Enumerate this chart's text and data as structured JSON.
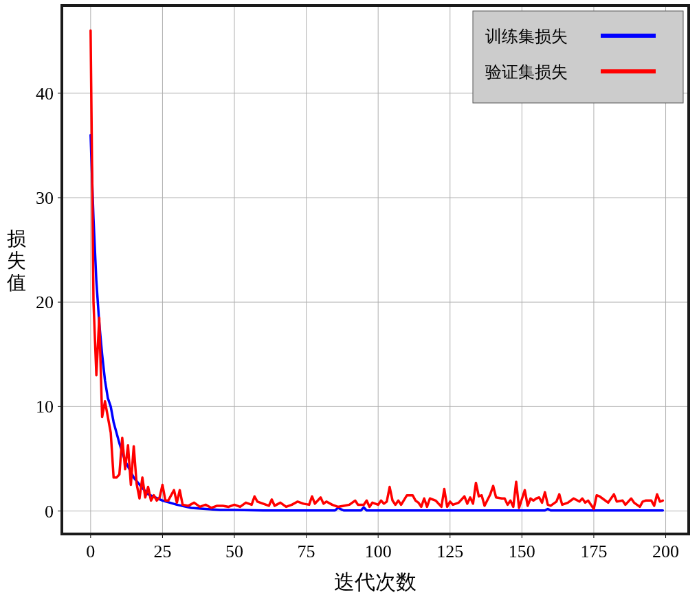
{
  "chart_data": {
    "type": "line",
    "xlabel": "迭代次数",
    "ylabel": "损失值",
    "xlim": [
      -10,
      208
    ],
    "ylim": [
      -2.2,
      48.4
    ],
    "xticks": [
      0,
      25,
      50,
      75,
      100,
      125,
      150,
      175,
      200
    ],
    "yticks": [
      0,
      10,
      20,
      30,
      40
    ],
    "grid": true,
    "legend": "top right",
    "line_style": "solid",
    "marker": "none",
    "series": [
      {
        "name": "训练集损失",
        "color": "#0000ff",
        "x": [
          0,
          1,
          2,
          3,
          4,
          5,
          6,
          7,
          8,
          10,
          12,
          15,
          18,
          20,
          25,
          30,
          35,
          40,
          45,
          50,
          60,
          85,
          86,
          88,
          94,
          95,
          96,
          120,
          158,
          159,
          160,
          199
        ],
        "values": [
          36,
          28,
          22,
          18,
          15,
          12.5,
          10.8,
          10,
          8.5,
          6.5,
          4.8,
          3.2,
          2.2,
          1.6,
          1.0,
          0.6,
          0.3,
          0.2,
          0.1,
          0.1,
          0.05,
          0.05,
          0.3,
          0.05,
          0.05,
          0.35,
          0.05,
          0.05,
          0.05,
          0.2,
          0.05,
          0.05
        ]
      },
      {
        "name": "验证集损失",
        "color": "#ff0000",
        "x": [
          0,
          1,
          2,
          3,
          4,
          5,
          6,
          7,
          8,
          9,
          10,
          11,
          12,
          13,
          14,
          15,
          16,
          17,
          18,
          19,
          20,
          21,
          22,
          23,
          24,
          25,
          26,
          27,
          28,
          29,
          30,
          31,
          32,
          34,
          36,
          38,
          40,
          42,
          44,
          46,
          48,
          50,
          52,
          54,
          56,
          57,
          58,
          60,
          62,
          63,
          64,
          66,
          68,
          70,
          72,
          74,
          76,
          77,
          78,
          80,
          81,
          82,
          84,
          86,
          88,
          90,
          92,
          93,
          95,
          96,
          97,
          98,
          100,
          101,
          102,
          103,
          104,
          105,
          106,
          107,
          108,
          110,
          111,
          112,
          113,
          114,
          115,
          116,
          117,
          118,
          120,
          122,
          123,
          124,
          125,
          126,
          128,
          130,
          131,
          132,
          133,
          134,
          135,
          136,
          137,
          139,
          140,
          141,
          143,
          144,
          145,
          146,
          147,
          148,
          149,
          151,
          152,
          153,
          154,
          155,
          156,
          157,
          158,
          159,
          160,
          162,
          163,
          164,
          166,
          168,
          170,
          171,
          172,
          173,
          175,
          176,
          177,
          178,
          180,
          182,
          183,
          185,
          186,
          188,
          189,
          191,
          192,
          193,
          195,
          196,
          197,
          198,
          199
        ],
        "values": [
          46,
          20,
          13,
          18.5,
          9,
          10.5,
          9,
          7.5,
          3.2,
          3.2,
          3.5,
          7,
          4,
          6.3,
          2.5,
          6.2,
          2.6,
          1.2,
          3.2,
          1.3,
          2.3,
          1,
          1.5,
          1,
          1.3,
          2.5,
          1.0,
          1.0,
          1.5,
          2.0,
          0.8,
          2.0,
          0.6,
          0.5,
          0.8,
          0.4,
          0.6,
          0.3,
          0.5,
          0.5,
          0.4,
          0.6,
          0.4,
          0.8,
          0.6,
          1.4,
          0.9,
          0.7,
          0.5,
          1.1,
          0.5,
          0.8,
          0.4,
          0.6,
          0.9,
          0.7,
          0.6,
          1.4,
          0.7,
          1.3,
          0.7,
          0.9,
          0.6,
          0.4,
          0.5,
          0.6,
          1.0,
          0.6,
          0.6,
          1.0,
          0.4,
          0.8,
          0.6,
          1.0,
          0.7,
          0.9,
          2.3,
          1.0,
          0.6,
          1.0,
          0.6,
          1.5,
          1.5,
          1.5,
          1.0,
          0.8,
          0.4,
          1.2,
          0.4,
          1.2,
          1.0,
          0.4,
          2.1,
          0.4,
          0.9,
          0.6,
          0.8,
          1.4,
          0.7,
          1.3,
          0.7,
          2.7,
          1.4,
          1.5,
          0.5,
          1.6,
          2.4,
          1.3,
          1.2,
          1.2,
          0.6,
          1.0,
          0.4,
          2.8,
          0.3,
          2.0,
          0.5,
          1.2,
          1.0,
          1.2,
          1.3,
          0.8,
          1.8,
          0.6,
          0.5,
          0.9,
          1.6,
          0.6,
          0.8,
          1.2,
          0.9,
          1.2,
          0.8,
          1.0,
          0.2,
          1.5,
          1.4,
          1.2,
          0.8,
          1.6,
          0.9,
          1.0,
          0.6,
          1.2,
          0.8,
          0.4,
          0.9,
          1.0,
          1.0,
          0.5,
          1.6,
          0.9,
          1.0
        ]
      }
    ]
  }
}
